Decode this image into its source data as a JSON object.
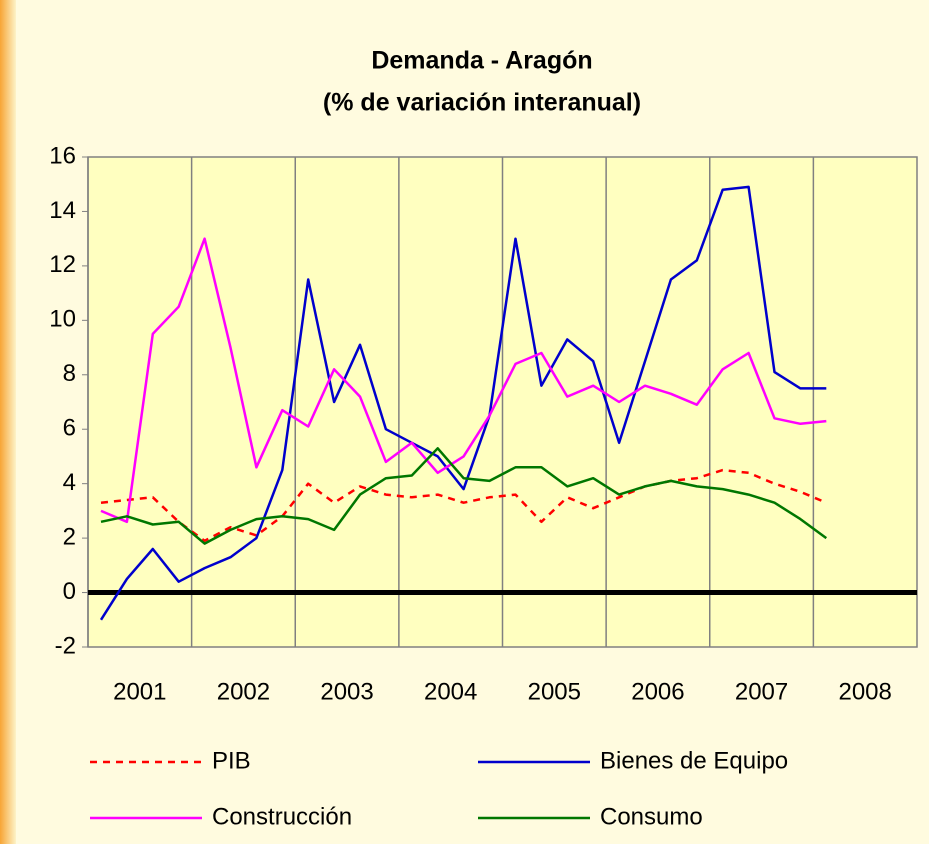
{
  "chart_data": {
    "type": "line",
    "title": "Demanda - Aragón",
    "subtitle": "(% de variación interanual)",
    "x": [
      2001.125,
      2001.375,
      2001.625,
      2001.875,
      2002.125,
      2002.375,
      2002.625,
      2002.875,
      2003.125,
      2003.375,
      2003.625,
      2003.875,
      2004.125,
      2004.375,
      2004.625,
      2004.875,
      2005.125,
      2005.375,
      2005.625,
      2005.875,
      2006.125,
      2006.375,
      2006.625,
      2006.875,
      2007.125,
      2007.375,
      2007.625,
      2007.875,
      2008.125
    ],
    "series": [
      {
        "name": "PIB",
        "color": "#ff0000",
        "dash": true,
        "values": [
          3.3,
          3.4,
          3.5,
          2.6,
          1.9,
          2.4,
          2.1,
          2.8,
          4,
          3.3,
          3.9,
          3.6,
          3.5,
          3.6,
          3.3,
          3.5,
          3.6,
          2.6,
          3.5,
          3.1,
          3.5,
          3.9,
          4.1,
          4.2,
          4.5,
          4.4,
          4.0,
          3.7,
          3.3
        ]
      },
      {
        "name": "Bienes de Equipo",
        "color": "#0000cc",
        "values": [
          -1,
          0.5,
          1.6,
          0.4,
          0.9,
          1.3,
          2,
          4.5,
          11.5,
          7,
          9.1,
          6,
          5.5,
          5,
          3.8,
          6.5,
          13,
          7.6,
          9.3,
          8.5,
          5.5,
          8.5,
          11.5,
          12.2,
          14.8,
          14.9,
          8.1,
          7.5,
          7.5
        ]
      },
      {
        "name": "Construcción",
        "color": "#ff00ff",
        "values": [
          3,
          2.6,
          9.5,
          10.5,
          13,
          9,
          4.6,
          6.7,
          6.1,
          8.2,
          7.2,
          4.8,
          5.5,
          4.4,
          5,
          6.5,
          8.4,
          8.8,
          7.2,
          7.6,
          7,
          7.6,
          7.3,
          6.9,
          8.2,
          8.8,
          6.4,
          6.2,
          6.3
        ]
      },
      {
        "name": "Consumo",
        "color": "#007700",
        "values": [
          2.6,
          2.8,
          2.5,
          2.6,
          1.8,
          2.3,
          2.7,
          2.8,
          2.7,
          2.3,
          3.6,
          4.2,
          4.3,
          5.3,
          4.2,
          4.1,
          4.6,
          4.6,
          3.9,
          4.2,
          3.6,
          3.9,
          4.1,
          3.9,
          3.8,
          3.6,
          3.3,
          2.7,
          2.0
        ]
      }
    ],
    "xlim": [
      2001,
      2009
    ],
    "xticks": [
      2001,
      2002,
      2003,
      2004,
      2005,
      2006,
      2007,
      2008
    ],
    "ylim": [
      -2,
      16
    ],
    "yticks": [
      -2,
      0,
      2,
      4,
      6,
      8,
      10,
      12,
      14,
      16
    ],
    "grid": true,
    "legend": "bottom"
  }
}
